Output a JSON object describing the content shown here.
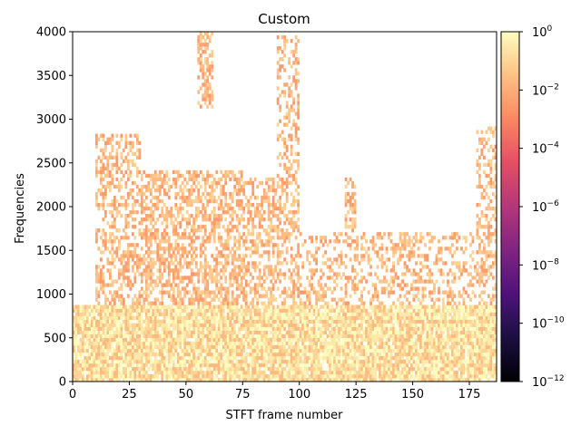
{
  "chart_data": {
    "type": "heatmap",
    "title": "Custom",
    "xlabel": "STFT frame number",
    "ylabel": "Frequencies",
    "xlim": [
      0,
      187
    ],
    "ylim": [
      0,
      4000
    ],
    "xticks": [
      0,
      25,
      50,
      75,
      100,
      125,
      150,
      175
    ],
    "yticks": [
      0,
      500,
      1000,
      1500,
      2000,
      2500,
      3000,
      3500,
      4000
    ],
    "colormap": "magma",
    "color_scale": "log",
    "colorbar": {
      "range": [
        1e-12,
        1
      ],
      "ticks": [
        {
          "base": "10",
          "exp": "0"
        },
        {
          "base": "10",
          "exp": "−2"
        },
        {
          "base": "10",
          "exp": "−4"
        },
        {
          "base": "10",
          "exp": "−6"
        },
        {
          "base": "10",
          "exp": "−8"
        },
        {
          "base": "10",
          "exp": "−10"
        },
        {
          "base": "10",
          "exp": "−12"
        }
      ]
    },
    "frames": 187,
    "bins": 96,
    "energy_regions": [
      {
        "x": [
          0,
          187
        ],
        "y": [
          0,
          850
        ],
        "density": 0.93
      },
      {
        "x": [
          10,
          30
        ],
        "y": [
          850,
          2800
        ],
        "density": 0.45
      },
      {
        "x": [
          30,
          75
        ],
        "y": [
          850,
          2400
        ],
        "density": 0.55
      },
      {
        "x": [
          55,
          62
        ],
        "y": [
          3100,
          4000
        ],
        "density": 0.6
      },
      {
        "x": [
          70,
          100
        ],
        "y": [
          850,
          2300
        ],
        "density": 0.5
      },
      {
        "x": [
          90,
          100
        ],
        "y": [
          2300,
          3950
        ],
        "density": 0.35
      },
      {
        "x": [
          100,
          187
        ],
        "y": [
          850,
          1700
        ],
        "density": 0.35
      },
      {
        "x": [
          120,
          125
        ],
        "y": [
          1700,
          2300
        ],
        "density": 0.5
      },
      {
        "x": [
          178,
          187
        ],
        "y": [
          850,
          2900
        ],
        "density": 0.4
      }
    ]
  }
}
